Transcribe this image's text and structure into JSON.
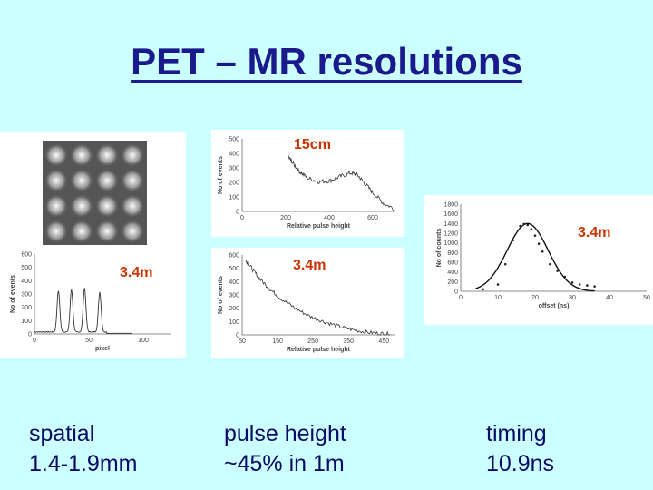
{
  "slide": {
    "title": "PET – MR resolutions"
  },
  "labels": {
    "pulse_top": "15cm",
    "pulse_bottom": "3.4m",
    "spatial": "3.4m",
    "timing": "3.4m"
  },
  "captions": {
    "spatial_line1": "spatial",
    "spatial_line2": "1.4-1.9mm",
    "pulse_line1": "pulse height",
    "pulse_line2": "~45% in 1m",
    "timing_line1": "timing",
    "timing_line2": "10.9ns"
  },
  "chart_data": [
    {
      "type": "heatmap",
      "grid": [
        4,
        4
      ]
    },
    {
      "type": "line",
      "xlabel": "pixel",
      "ylabel": "No of events",
      "xticks": [
        "0",
        "50",
        "100"
      ],
      "yticks": [
        "0",
        "100",
        "200",
        "300",
        "400",
        "500",
        "600"
      ],
      "xlim": [
        0,
        125
      ],
      "ylim": [
        0,
        600
      ],
      "peaks": [
        {
          "x": 22,
          "y": 310
        },
        {
          "x": 34,
          "y": 320
        },
        {
          "x": 46,
          "y": 330
        },
        {
          "x": 60,
          "y": 300
        }
      ]
    },
    {
      "type": "line",
      "xlabel": "Relative pulse height",
      "ylabel": "No of events",
      "xticks": [
        "0",
        "200",
        "400",
        "600"
      ],
      "yticks": [
        "0",
        "100",
        "200",
        "300",
        "400",
        "500"
      ],
      "xlim": [
        0,
        700
      ],
      "ylim": [
        0,
        500
      ],
      "x": [
        210,
        230,
        260,
        300,
        350,
        400,
        450,
        500,
        530,
        560,
        600,
        650,
        700
      ],
      "y": [
        380,
        340,
        280,
        230,
        205,
        210,
        240,
        265,
        250,
        200,
        130,
        55,
        20
      ]
    },
    {
      "type": "line",
      "xlabel": "Relative pulse height",
      "ylabel": "No of events",
      "xticks": [
        "50",
        "150",
        "250",
        "350",
        "450"
      ],
      "yticks": [
        "0",
        "100",
        "200",
        "300",
        "400",
        "500",
        "600"
      ],
      "xlim": [
        50,
        480
      ],
      "ylim": [
        0,
        600
      ],
      "x": [
        60,
        80,
        100,
        130,
        160,
        200,
        240,
        280,
        320,
        360,
        400,
        440,
        470
      ],
      "y": [
        560,
        490,
        420,
        340,
        270,
        200,
        140,
        100,
        65,
        40,
        20,
        10,
        5
      ]
    },
    {
      "type": "scatter",
      "xlabel": "offset (ns)",
      "ylabel": "No of counts",
      "xticks": [
        "0",
        "10",
        "20",
        "30",
        "40",
        "50"
      ],
      "yticks": [
        "0",
        "200",
        "400",
        "600",
        "800",
        "1000",
        "1200",
        "1400",
        "1600",
        "1800"
      ],
      "xlim": [
        0,
        50
      ],
      "ylim": [
        0,
        1800
      ],
      "x": [
        6,
        10,
        12,
        14,
        16,
        17,
        18,
        19,
        20,
        21,
        22,
        24,
        26,
        28,
        30,
        32,
        34,
        36
      ],
      "y": [
        40,
        140,
        560,
        1050,
        1350,
        1390,
        1370,
        1280,
        1150,
        980,
        820,
        560,
        420,
        300,
        180,
        140,
        120,
        100
      ]
    }
  ]
}
